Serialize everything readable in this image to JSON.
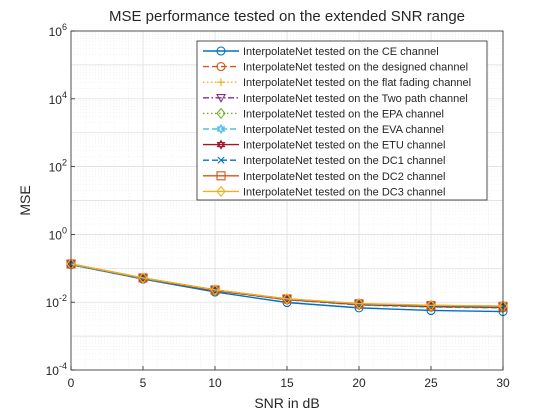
{
  "chart_data": {
    "type": "line",
    "title": "MSE performance tested on the extended SNR range",
    "xlabel": "SNR in dB",
    "ylabel": "MSE",
    "xlim": [
      0,
      30
    ],
    "ylim": [
      0.0001,
      1000000
    ],
    "yscale": "log",
    "grid": true,
    "minor_grid": true,
    "legend_position": "top-right",
    "x": [
      0,
      5,
      10,
      15,
      20,
      25,
      30
    ],
    "x_ticks": [
      "0",
      "5",
      "10",
      "15",
      "20",
      "25",
      "30"
    ],
    "y_ticks": [
      {
        "base": "10",
        "exp": "-4"
      },
      {
        "base": "10",
        "exp": "-2"
      },
      {
        "base": "10",
        "exp": "0"
      },
      {
        "base": "10",
        "exp": "2"
      },
      {
        "base": "10",
        "exp": "4"
      },
      {
        "base": "10",
        "exp": "6"
      }
    ],
    "series": [
      {
        "name": "InterpolateNet tested on the CE channel",
        "color": "#0072BD",
        "dash": "solid",
        "marker": "circle",
        "values": [
          0.128,
          0.048,
          0.02,
          0.0098,
          0.0068,
          0.0057,
          0.0053
        ]
      },
      {
        "name": "InterpolateNet tested on the designed channel",
        "color": "#D95319",
        "dash": "dashed",
        "marker": "circle",
        "values": [
          0.132,
          0.05,
          0.022,
          0.0118,
          0.0083,
          0.0072,
          0.0068
        ]
      },
      {
        "name": "InterpolateNet tested on the flat fading channel",
        "color": "#EDB120",
        "dash": "dotted",
        "marker": "plus",
        "values": [
          0.131,
          0.05,
          0.022,
          0.012,
          0.0085,
          0.0074,
          0.007
        ]
      },
      {
        "name": "InterpolateNet tested on the Two path channel",
        "color": "#7E2F8E",
        "dash": "dashdot",
        "marker": "triangle-down",
        "values": [
          0.133,
          0.051,
          0.023,
          0.0124,
          0.0088,
          0.0077,
          0.0073
        ]
      },
      {
        "name": "InterpolateNet tested on the EPA channel",
        "color": "#77AC30",
        "dash": "dotted",
        "marker": "diamond",
        "values": [
          0.132,
          0.05,
          0.022,
          0.0119,
          0.0084,
          0.0073,
          0.0069
        ]
      },
      {
        "name": "InterpolateNet tested on the EVA channel",
        "color": "#4DBEEE",
        "dash": "dashed",
        "marker": "hexagram",
        "values": [
          0.132,
          0.05,
          0.022,
          0.012,
          0.0085,
          0.0074,
          0.007
        ]
      },
      {
        "name": "InterpolateNet tested on the ETU channel",
        "color": "#A2142F",
        "dash": "solid",
        "marker": "hexagram",
        "values": [
          0.133,
          0.051,
          0.022,
          0.0121,
          0.0086,
          0.0075,
          0.0071
        ]
      },
      {
        "name": "InterpolateNet tested on the DC1 channel",
        "color": "#0072BD",
        "dash": "dashed",
        "marker": "x",
        "values": [
          0.133,
          0.051,
          0.023,
          0.0122,
          0.0087,
          0.0076,
          0.0072
        ]
      },
      {
        "name": "InterpolateNet tested on the DC2 channel",
        "color": "#D95319",
        "dash": "solid",
        "marker": "square",
        "values": [
          0.134,
          0.052,
          0.023,
          0.0125,
          0.009,
          0.008,
          0.0076
        ]
      },
      {
        "name": "InterpolateNet tested on the DC3 channel",
        "color": "#EDB120",
        "dash": "solid",
        "marker": "diamond",
        "values": [
          0.134,
          0.052,
          0.023,
          0.0126,
          0.0091,
          0.0081,
          0.0077
        ]
      }
    ]
  }
}
